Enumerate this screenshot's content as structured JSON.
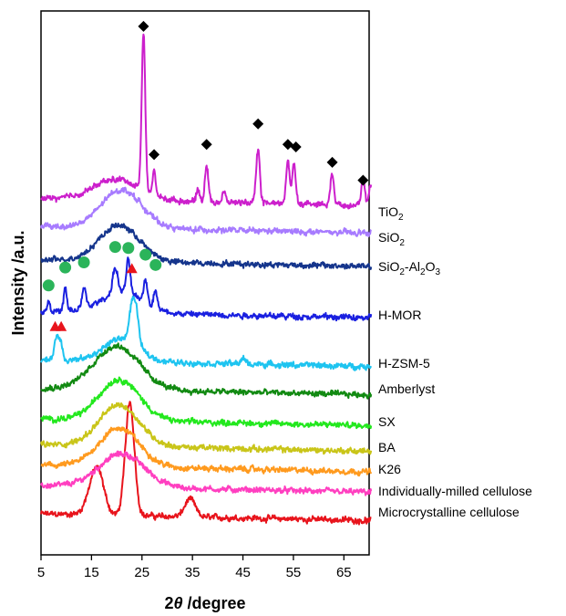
{
  "chart_data": {
    "type": "line",
    "title": "",
    "xlabel": "2θ /degree",
    "xlabel_symbol": "2",
    "xlabel_theta": "θ",
    "xlabel_unit": " /degree",
    "ylabel": "Intensity /a.u.",
    "xlim": [
      5,
      70
    ],
    "xticks": [
      5,
      15,
      25,
      35,
      45,
      55,
      65
    ],
    "yticks": [],
    "grid": false,
    "legend": "labels at right of each trace",
    "marker_legend_note": "",
    "series": [
      {
        "label_main": "Microcrystalline cellulose",
        "label_sub": "",
        "label_tail": "",
        "color": "#e8141c",
        "baseline": 0.0,
        "shape": "crystalline",
        "peaks": [
          [
            15.5,
            0.55,
            1.4
          ],
          [
            16.5,
            0.45,
            1.2
          ],
          [
            22.6,
            2.2,
            0.9
          ],
          [
            34.5,
            0.35,
            1.0
          ]
        ]
      },
      {
        "label_main": "Individually-milled cellulose",
        "label_sub": "",
        "label_tail": "",
        "color": "#ff3fc0",
        "baseline": 0.55,
        "shape": "amorphous",
        "peaks": [
          [
            21.0,
            0.65,
            4.5
          ]
        ]
      },
      {
        "label_main": "K26",
        "label_sub": "",
        "label_tail": "",
        "color": "#ff9a1e",
        "baseline": 0.95,
        "shape": "amorphous",
        "peaks": [
          [
            20.5,
            0.75,
            4.0
          ]
        ]
      },
      {
        "label_main": "BA",
        "label_sub": "",
        "label_tail": "",
        "color": "#c9c519",
        "baseline": 1.35,
        "shape": "amorphous",
        "peaks": [
          [
            20.5,
            0.8,
            4.0
          ]
        ]
      },
      {
        "label_main": "SX",
        "label_sub": "",
        "label_tail": "",
        "color": "#23e81e",
        "baseline": 1.85,
        "shape": "amorphous",
        "peaks": [
          [
            20.5,
            0.8,
            4.0
          ]
        ]
      },
      {
        "label_main": "Amberlyst",
        "label_sub": "",
        "label_tail": "",
        "color": "#128a12",
        "baseline": 2.45,
        "shape": "amorphous",
        "peaks": [
          [
            20.0,
            0.85,
            4.5
          ]
        ]
      },
      {
        "label_main": "H-ZSM-5",
        "label_sub": "",
        "label_tail": "",
        "color": "#1ec4f0",
        "baseline": 3.0,
        "shape": "crystalline",
        "peaks": [
          [
            8.0,
            0.45,
            0.4
          ],
          [
            8.9,
            0.35,
            0.4
          ],
          [
            23.1,
            0.75,
            0.6
          ],
          [
            24.0,
            0.45,
            0.5
          ],
          [
            21.0,
            0.45,
            3.5
          ],
          [
            45.0,
            0.1,
            0.5
          ]
        ]
      },
      {
        "label_main": "H-MOR",
        "label_sub": "",
        "label_tail": "",
        "color": "#1a20e0",
        "baseline": 3.95,
        "shape": "crystalline",
        "peaks": [
          [
            6.5,
            0.2,
            0.3
          ],
          [
            9.8,
            0.45,
            0.3
          ],
          [
            13.5,
            0.4,
            0.4
          ],
          [
            19.7,
            0.5,
            0.5
          ],
          [
            22.3,
            0.65,
            0.4
          ],
          [
            25.7,
            0.45,
            0.4
          ],
          [
            27.7,
            0.35,
            0.4
          ],
          [
            21.0,
            0.4,
            4.0
          ]
        ]
      },
      {
        "label_main": "SiO",
        "label_sub": "2",
        "label_tail": "-Al",
        "label_sub2": "2",
        "label_tail2": "O",
        "label_sub3": "3",
        "color": "#15358c",
        "baseline": 4.95,
        "shape": "amorphous",
        "peaks": [
          [
            20.5,
            0.7,
            4.0
          ]
        ]
      },
      {
        "label_main": "SiO",
        "label_sub": "2",
        "label_tail": "",
        "color": "#a77bff",
        "baseline": 5.6,
        "shape": "amorphous",
        "peaks": [
          [
            21.0,
            0.75,
            4.0
          ]
        ]
      },
      {
        "label_main": "TiO",
        "label_sub": "2",
        "label_tail": "",
        "color": "#cc1fcc",
        "baseline": 6.15,
        "shape": "crystalline",
        "peaks": [
          [
            20.0,
            0.4,
            4.5
          ],
          [
            25.3,
            3.1,
            0.35
          ],
          [
            27.4,
            0.5,
            0.3
          ],
          [
            36.1,
            0.25,
            0.3
          ],
          [
            37.8,
            0.7,
            0.35
          ],
          [
            41.2,
            0.2,
            0.3
          ],
          [
            48.0,
            1.05,
            0.35
          ],
          [
            53.9,
            0.8,
            0.35
          ],
          [
            55.1,
            0.8,
            0.35
          ],
          [
            62.7,
            0.6,
            0.35
          ],
          [
            68.8,
            0.45,
            0.35
          ],
          [
            70.3,
            0.4,
            0.3
          ]
        ]
      }
    ],
    "markers": {
      "diamond": {
        "color": "#000000",
        "points": [
          [
            25.3,
            9.5
          ],
          [
            27.4,
            7.0
          ],
          [
            37.8,
            7.2
          ],
          [
            48.0,
            7.6
          ],
          [
            53.9,
            7.2
          ],
          [
            55.5,
            7.15
          ],
          [
            62.7,
            6.85
          ],
          [
            68.8,
            6.5
          ]
        ]
      },
      "circle": {
        "color": "#2bb45a",
        "points": [
          [
            6.5,
            4.45
          ],
          [
            9.8,
            4.8
          ],
          [
            13.5,
            4.9
          ],
          [
            19.7,
            5.2
          ],
          [
            22.3,
            5.18
          ],
          [
            25.7,
            5.05
          ],
          [
            27.7,
            4.85
          ]
        ]
      },
      "triangle": {
        "color": "#e8141c",
        "points": [
          [
            7.8,
            3.65
          ],
          [
            9.0,
            3.65
          ],
          [
            23.0,
            4.78
          ]
        ]
      }
    }
  }
}
